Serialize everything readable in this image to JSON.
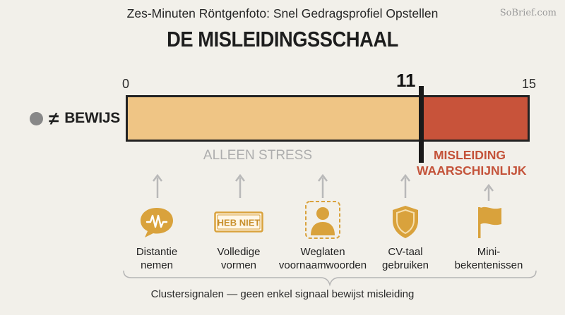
{
  "header": {
    "subtitle": "Zes-Minuten Röntgenfoto: Snel Gedragsprofiel Opstellen",
    "title": "DE MISLEIDINGSSCHAAL",
    "brand": "SoBrief.com"
  },
  "scale": {
    "min_label": "0",
    "threshold_label": "11",
    "max_label": "15",
    "min": 0,
    "threshold": 11,
    "max": 15
  },
  "left_label": {
    "symbol": "≠",
    "text": "BEWIJS"
  },
  "zones": {
    "stress": "ALLEEN STRESS",
    "misleiding_line1": "MISLEIDING",
    "misleiding_line2": "WAARSCHIJNLIJK"
  },
  "signals": [
    {
      "icon": "speech-bubble-icon",
      "line1": "Distantie",
      "line2": "nemen"
    },
    {
      "icon": "heb-niet-sign-icon",
      "badge": "HEB NIET",
      "line1": "Volledige",
      "line2": "vormen"
    },
    {
      "icon": "person-silhouette-icon",
      "line1": "Weglaten",
      "line2": "voornaamwoorden"
    },
    {
      "icon": "shield-icon",
      "line1": "CV-taal",
      "line2": "gebruiken"
    },
    {
      "icon": "flag-icon",
      "line1": "Mini-",
      "line2": "bekentenissen"
    }
  ],
  "footer": "Clustersignalen — geen enkel signaal bewijst misleiding",
  "colors": {
    "background": "#f2f0ea",
    "stress_zone": "#efc585",
    "deception_zone": "#c8533a",
    "icon_gold": "#d9a23c",
    "arrow_gray": "#b9b9b9"
  }
}
